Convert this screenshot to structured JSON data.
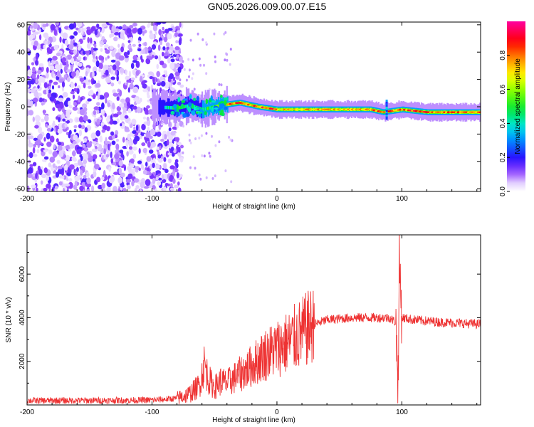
{
  "title": "GN05.2026.009.00.07.E15",
  "chart_data": [
    {
      "type": "heatmap",
      "title": "GN05.2026.009.00.07.E15",
      "xlabel": "Height of straight line (km)",
      "ylabel": "Frequency (Hz)",
      "xlim": [
        -200,
        163
      ],
      "ylim": [
        -62,
        62
      ],
      "xticks": [
        -200,
        -100,
        0,
        100
      ],
      "yticks": [
        -60,
        -40,
        -20,
        0,
        20,
        40,
        60
      ],
      "colorbar": {
        "label": "Normalized spectral amplitude",
        "range": [
          0,
          1
        ],
        "ticks": [
          0.0,
          0.2,
          0.4,
          0.6,
          0.8
        ]
      },
      "noise_region_x": [
        -200,
        -80
      ],
      "ridge": [
        {
          "x": -100,
          "f": 0
        },
        {
          "x": -80,
          "f": -1
        },
        {
          "x": -70,
          "f": 1
        },
        {
          "x": -60,
          "f": -2
        },
        {
          "x": -45,
          "f": 1
        },
        {
          "x": -30,
          "f": 3
        },
        {
          "x": -15,
          "f": 0
        },
        {
          "x": 0,
          "f": -2
        },
        {
          "x": 20,
          "f": -2
        },
        {
          "x": 50,
          "f": -2
        },
        {
          "x": 75,
          "f": -2
        },
        {
          "x": 85,
          "f": -4
        },
        {
          "x": 100,
          "f": -2
        },
        {
          "x": 120,
          "f": -4
        },
        {
          "x": 163,
          "f": -4
        }
      ]
    },
    {
      "type": "line",
      "xlabel": "Height of straight line (km)",
      "ylabel": "SNR (10 * v/v)",
      "xlim": [
        -200,
        163
      ],
      "ylim": [
        0,
        7800
      ],
      "xticks": [
        -200,
        -100,
        0,
        100
      ],
      "yticks": [
        2000,
        4000,
        6000
      ],
      "color": "#ee3333",
      "series": [
        {
          "name": "SNR",
          "x": [
            -200,
            -150,
            -100,
            -80,
            -70,
            -62,
            -58,
            -55,
            -50,
            -45,
            -40,
            -30,
            -20,
            -10,
            0,
            10,
            20,
            30,
            40,
            60,
            80,
            90,
            95,
            97,
            98,
            100,
            110,
            130,
            163
          ],
          "y": [
            200,
            200,
            220,
            300,
            500,
            900,
            1900,
            1200,
            800,
            1100,
            1000,
            1400,
            1800,
            2300,
            2600,
            2900,
            3300,
            3700,
            3900,
            4000,
            4000,
            4000,
            3800,
            1200,
            6500,
            4000,
            3900,
            3800,
            3700
          ]
        }
      ]
    }
  ]
}
